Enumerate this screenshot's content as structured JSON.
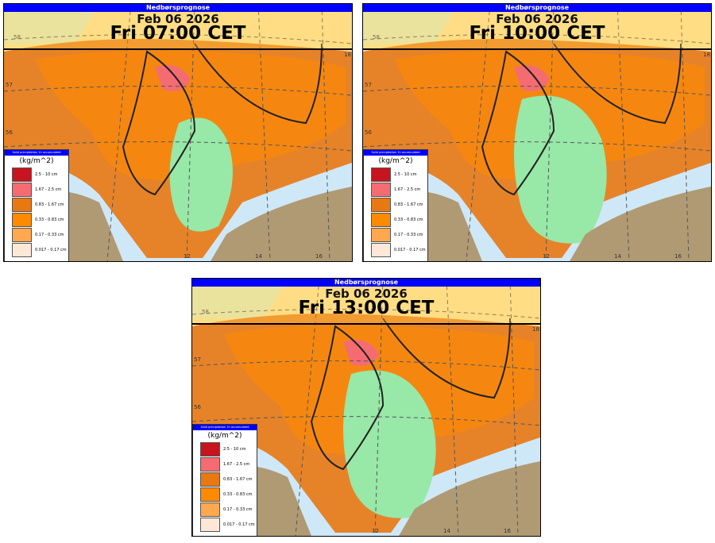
{
  "title": "Nedbørsprognose",
  "date": "Feb 06 2026",
  "panels": [
    {
      "time": "Fri 07:00 CET"
    },
    {
      "time": "Fri 10:00 CET"
    },
    {
      "time": "Fri 13:00 CET"
    }
  ],
  "legend": {
    "title": "Solid precipitation 1h accumulated",
    "units": "(kg/m^2)",
    "items": [
      {
        "label": "2.5 - 10 cm",
        "color": "#c8141e"
      },
      {
        "label": "1.67 - 2.5 cm",
        "color": "#f46c72"
      },
      {
        "label": "0.83 - 1.67 cm",
        "color": "#e87812"
      },
      {
        "label": "0.33 - 0.83 cm",
        "color": "#ff8a00"
      },
      {
        "label": "0.17 - 0.33 cm",
        "color": "#ffa850"
      },
      {
        "label": "0.017 - 0.17 cm",
        "color": "#fde8d8"
      }
    ]
  },
  "lat_ticks": [
    "58",
    "57",
    "56"
  ],
  "lon_ticks": [
    "12",
    "14",
    "16",
    "18"
  ],
  "colors": {
    "land": "#b09a74",
    "sea": "#cfe8f8",
    "snow_green": "#98e8a8",
    "header": "#0000ff"
  }
}
